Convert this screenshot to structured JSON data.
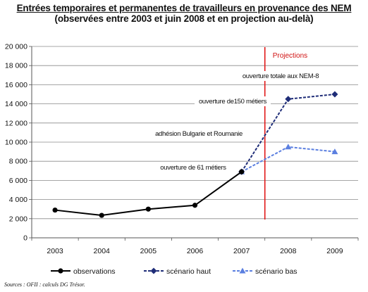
{
  "chart_data": {
    "type": "line",
    "title": "Entrées temporaires et permanentes de travailleurs en provenance des NEM",
    "subtitle": "(observées entre 2003 et juin 2008 et en projection au-delà)",
    "categories": [
      "2003",
      "2004",
      "2005",
      "2006",
      "2007",
      "2008",
      "2009"
    ],
    "ylim": [
      0,
      20000
    ],
    "yticks": [
      "0",
      "2 000",
      "4 000",
      "6 000",
      "8 000",
      "10 000",
      "12 000",
      "14 000",
      "16 000",
      "18 000",
      "20 000"
    ],
    "grid": true,
    "legend_position": "bottom",
    "series": [
      {
        "name": "observations",
        "color": "#000000",
        "style": "solid",
        "marker": "circle",
        "values": [
          2900,
          2350,
          3000,
          3400,
          6900,
          null,
          null
        ]
      },
      {
        "name": "scénario haut",
        "color": "#1f2d78",
        "style": "dashed",
        "marker": "diamond",
        "values": [
          null,
          null,
          null,
          null,
          6900,
          14500,
          15000
        ]
      },
      {
        "name": "scénario bas",
        "color": "#5b7fe0",
        "style": "dashed",
        "marker": "triangle",
        "values": [
          null,
          null,
          null,
          null,
          6900,
          9500,
          9000
        ]
      }
    ],
    "projection_label": "Projections",
    "annotations": [
      "ouverture totale aux NEM-8",
      "ouverture de150 métiers",
      "adhésion Bulgarie et Roumanie",
      "ouverture de 61 métiers"
    ],
    "source": "Sources : OFII : calculs DG Trésor."
  }
}
